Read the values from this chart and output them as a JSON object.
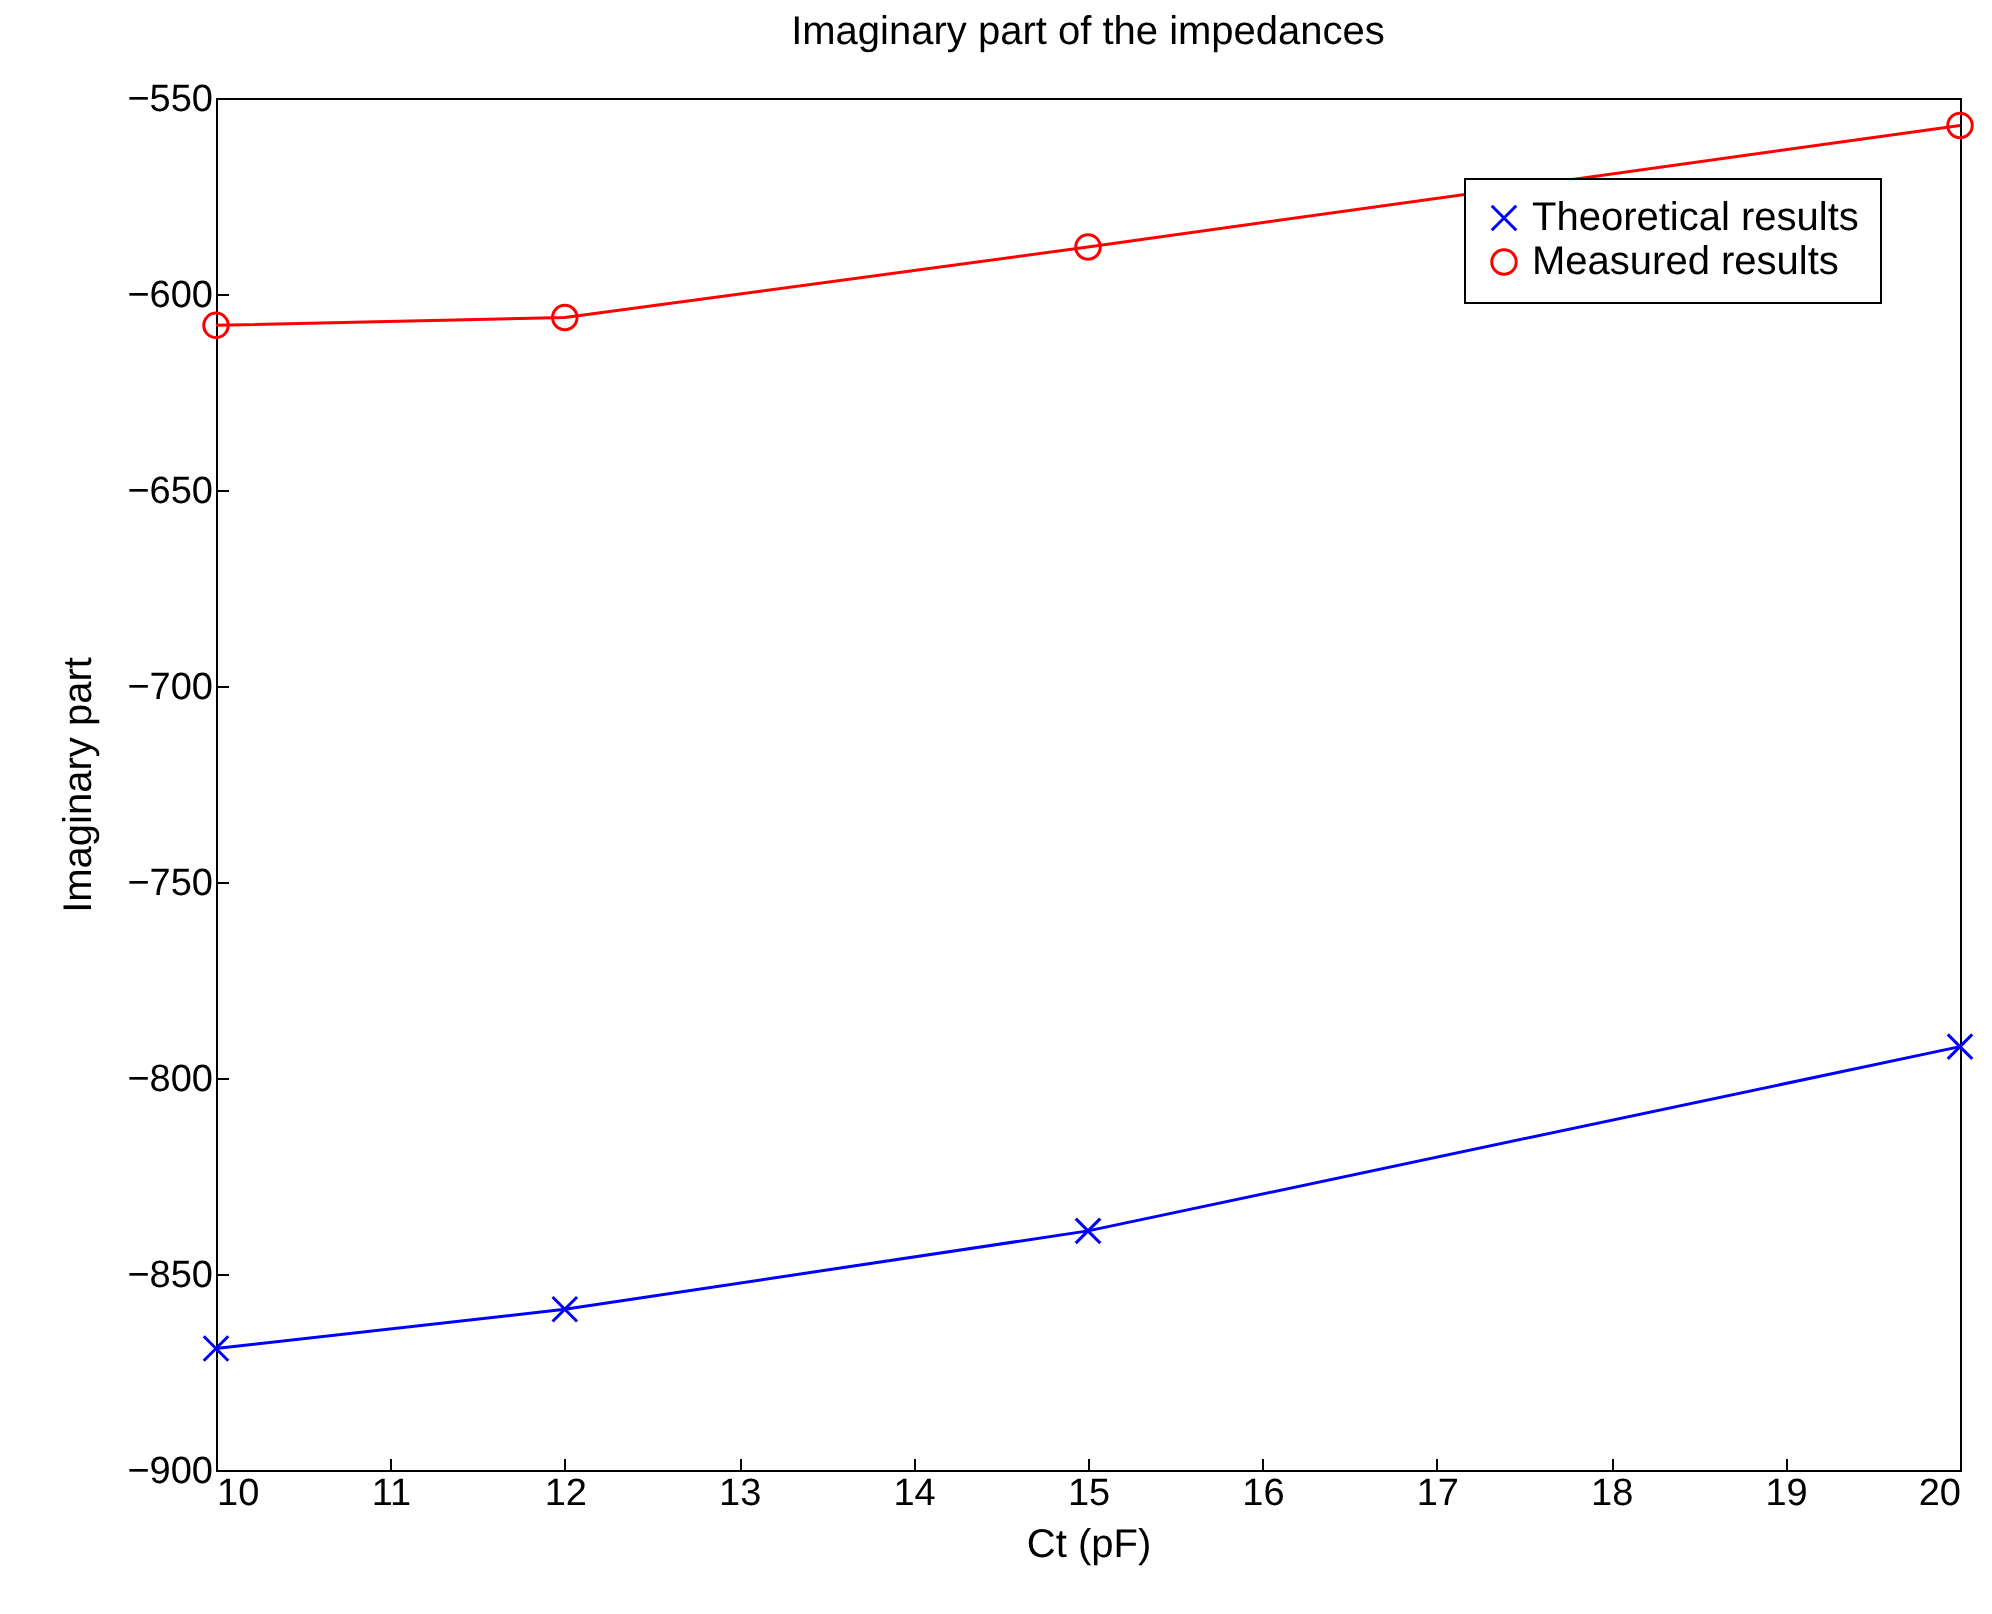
{
  "chart_data": {
    "type": "line",
    "title": "Imaginary part of the impedances",
    "xlabel": "Ct (pF)",
    "ylabel": "Imaginary  part",
    "x": [
      10,
      12,
      15,
      20
    ],
    "series": [
      {
        "name": "Theoretical results",
        "color": "#0000ff",
        "marker": "cross",
        "values": [
          -869,
          -859,
          -839,
          -792
        ]
      },
      {
        "name": "Measured results",
        "color": "#ff0000",
        "marker": "circle",
        "values": [
          -608,
          -606,
          -588,
          -557
        ]
      }
    ],
    "xlim": [
      10,
      20
    ],
    "xticks": [
      10,
      11,
      12,
      13,
      14,
      15,
      16,
      17,
      18,
      19,
      20
    ],
    "ylim": [
      -900,
      -550
    ],
    "yticks": [
      -900,
      -850,
      -800,
      -750,
      -700,
      -650,
      -600,
      -550
    ],
    "grid": false,
    "legend": "top right",
    "line_style": "solid"
  }
}
